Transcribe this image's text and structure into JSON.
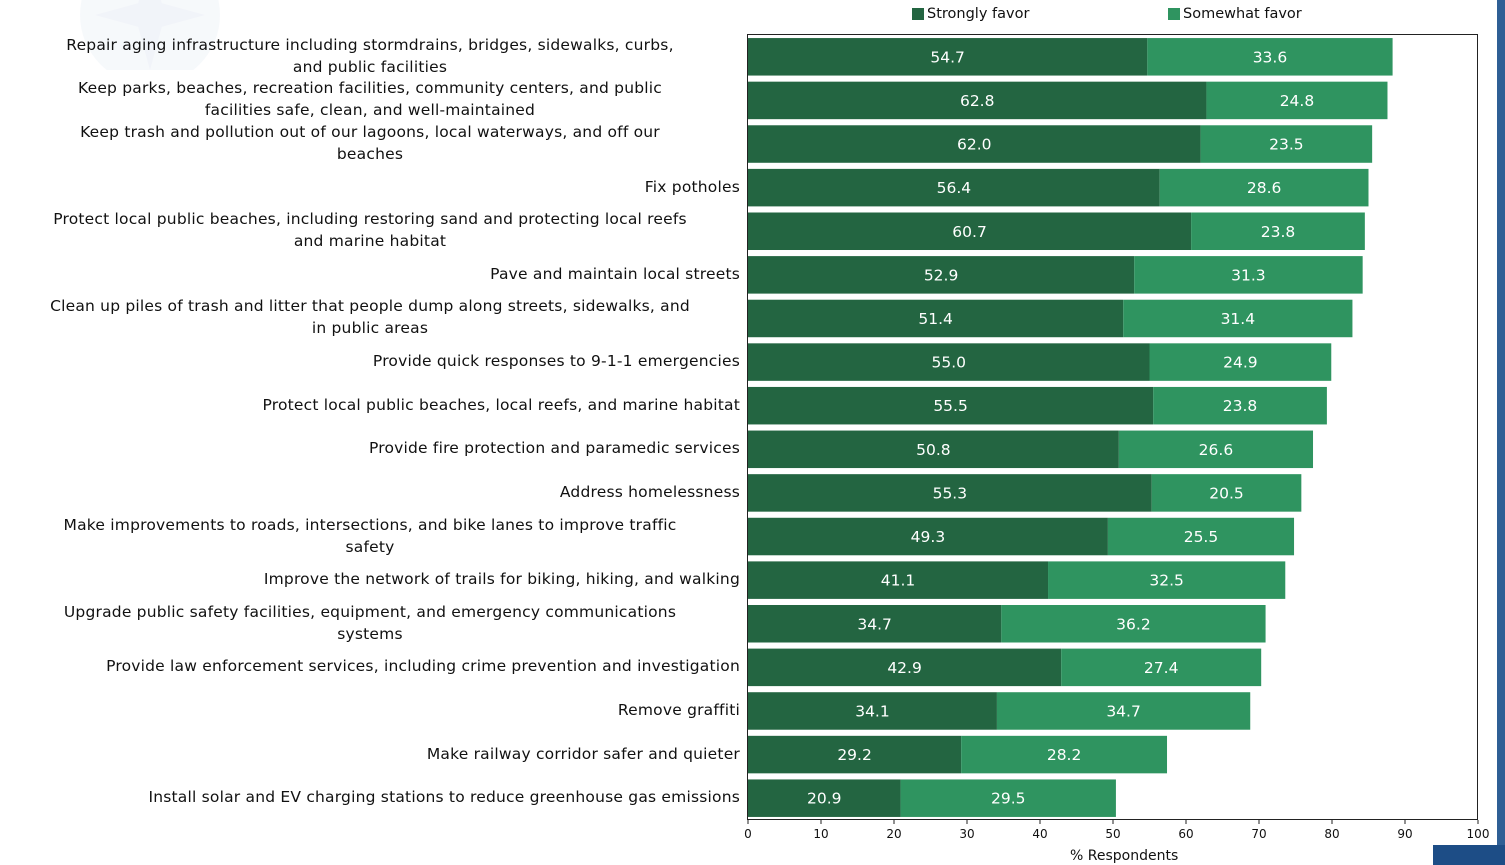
{
  "chart_data": {
    "type": "bar",
    "orientation": "horizontal",
    "stacked": true,
    "categories": [
      "Repair aging infrastructure including stormdrains, bridges, sidewalks, curbs, and public facilities",
      "Keep parks, beaches, recreation facilities, community centers, and public facilities safe, clean, and well-maintained",
      "Keep trash and pollution out of our lagoons, local waterways, and off our beaches",
      "Fix potholes",
      "Protect local public beaches, including restoring sand and protecting local reefs and marine habitat",
      "Pave and maintain local streets",
      "Clean up piles of trash and litter that people dump along streets, sidewalks, and in public areas",
      "Provide quick responses to 9-1-1 emergencies",
      "Protect local public beaches, local reefs, and marine habitat",
      "Provide fire protection and paramedic services",
      "Address homelessness",
      "Make improvements to roads, intersections, and bike lanes to improve traffic safety",
      "Improve the network of trails for biking, hiking, and walking",
      "Upgrade public safety facilities, equipment, and emergency communications systems",
      "Provide law enforcement services, including crime prevention and investigation",
      "Remove graffiti",
      "Make railway corridor safer and quieter",
      "Install solar and EV charging stations to reduce greenhouse gas emissions"
    ],
    "category_lines": [
      [
        "Repair aging infrastructure including stormdrains, bridges, sidewalks, curbs,",
        "and public facilities"
      ],
      [
        "Keep parks, beaches, recreation facilities, community centers, and public",
        "facilities safe, clean, and well-maintained"
      ],
      [
        "Keep trash and pollution out of our lagoons, local waterways, and off our",
        "beaches"
      ],
      [
        "Fix potholes"
      ],
      [
        "Protect local public beaches, including restoring sand and protecting local reefs",
        "and marine habitat"
      ],
      [
        "Pave and maintain local streets"
      ],
      [
        "Clean up piles of trash and litter that people dump along streets, sidewalks, and",
        "in public areas"
      ],
      [
        "Provide quick responses to 9-1-1 emergencies"
      ],
      [
        "Protect local public beaches, local reefs, and marine habitat"
      ],
      [
        "Provide fire protection and paramedic services"
      ],
      [
        "Address homelessness"
      ],
      [
        "Make improvements to roads, intersections, and bike lanes to improve traffic",
        "safety"
      ],
      [
        "Improve the network of trails for biking, hiking, and walking"
      ],
      [
        "Upgrade public safety facilities, equipment, and emergency communications",
        "systems"
      ],
      [
        "Provide law enforcement services, including crime prevention and investigation"
      ],
      [
        "Remove graffiti"
      ],
      [
        "Make railway corridor safer and quieter"
      ],
      [
        "Install solar and EV charging stations to reduce greenhouse gas emissions"
      ]
    ],
    "series": [
      {
        "name": "Strongly favor",
        "color": "#236541",
        "values": [
          54.7,
          62.8,
          62.0,
          56.4,
          60.7,
          52.9,
          51.4,
          55.0,
          55.5,
          50.8,
          55.3,
          49.3,
          41.1,
          34.7,
          42.9,
          34.1,
          29.2,
          20.9
        ]
      },
      {
        "name": "Somewhat favor",
        "color": "#2f9460",
        "values": [
          33.6,
          24.8,
          23.5,
          28.6,
          23.8,
          31.3,
          31.4,
          24.9,
          23.8,
          26.6,
          20.5,
          25.5,
          32.5,
          36.2,
          27.4,
          34.7,
          28.2,
          29.5
        ]
      }
    ],
    "data_labels": [
      [
        "54.7",
        "62.8",
        "62.0",
        "56.4",
        "60.7",
        "52.9",
        "51.4",
        "55.0",
        "55.5",
        "50.8",
        "55.3",
        "49.3",
        "41.1",
        "34.7",
        "42.9",
        "34.1",
        "29.2",
        "20.9"
      ],
      [
        "33.6",
        "24.8",
        "23.5",
        "28.6",
        "23.8",
        "31.3",
        "31.4",
        "24.9",
        "23.8",
        "26.6",
        "20.5",
        "25.5",
        "32.5",
        "36.2",
        "27.4",
        "34.7",
        "28.2",
        "29.5"
      ]
    ],
    "xlabel": "% Respondents",
    "xlim": [
      0,
      100
    ],
    "xticks": [
      0,
      10,
      20,
      30,
      40,
      50,
      60,
      70,
      80,
      90,
      100
    ],
    "legend_position": "top",
    "grid": false
  }
}
